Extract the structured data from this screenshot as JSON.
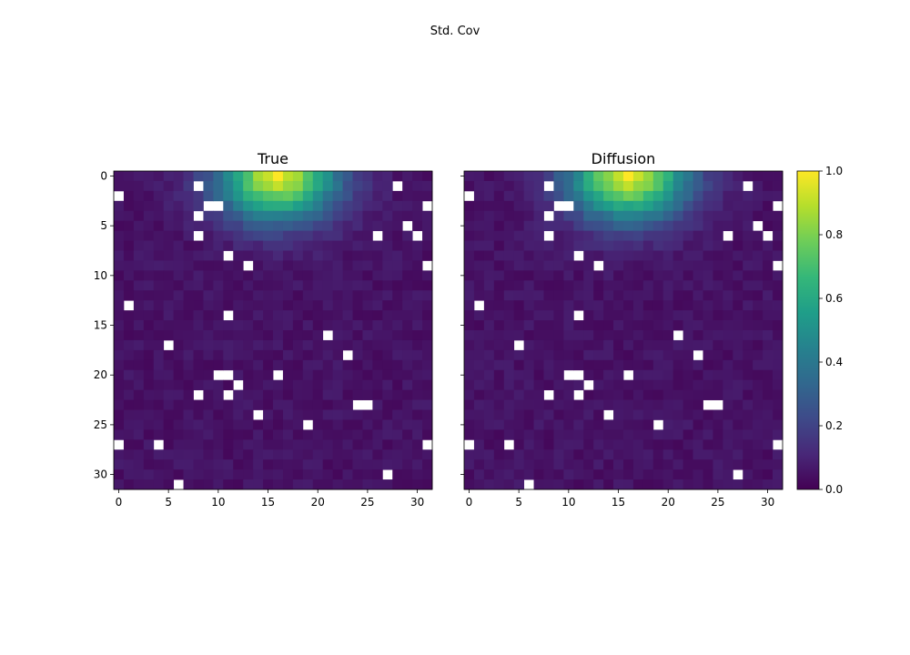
{
  "figure": {
    "suptitle": "Std. Cov"
  },
  "colorbar": {
    "min": 0.0,
    "max": 1.0,
    "ticks": [
      0.0,
      0.2,
      0.4,
      0.6,
      0.8,
      1.0
    ],
    "tick_labels": [
      "0.0",
      "0.2",
      "0.4",
      "0.6",
      "0.8",
      "1.0"
    ],
    "colormap": "viridis",
    "stops": [
      "#440154",
      "#482878",
      "#3e4a89",
      "#31688e",
      "#26828e",
      "#1f9e89",
      "#35b779",
      "#6dcd59",
      "#b4de2c",
      "#fde725"
    ]
  },
  "chart_data": [
    {
      "type": "heatmap",
      "title": "True",
      "grid_size": 32,
      "x_ticks": [
        0,
        5,
        10,
        15,
        20,
        25,
        30
      ],
      "y_ticks": [
        0,
        5,
        10,
        15,
        20,
        25,
        30
      ],
      "x_tick_labels": [
        "0",
        "5",
        "10",
        "15",
        "20",
        "25",
        "30"
      ],
      "y_tick_labels": [
        "0",
        "5",
        "10",
        "15",
        "20",
        "25",
        "30"
      ],
      "value_range": [
        0,
        1
      ],
      "peak": {
        "row": 0,
        "col": 16,
        "value": 1.0
      },
      "masked_cells": [
        [
          1,
          8
        ],
        [
          1,
          28
        ],
        [
          2,
          0
        ],
        [
          3,
          9
        ],
        [
          3,
          10
        ],
        [
          3,
          31
        ],
        [
          4,
          8
        ],
        [
          5,
          29
        ],
        [
          6,
          8
        ],
        [
          6,
          26
        ],
        [
          6,
          30
        ],
        [
          8,
          11
        ],
        [
          9,
          13
        ],
        [
          9,
          31
        ],
        [
          13,
          1
        ],
        [
          14,
          11
        ],
        [
          16,
          21
        ],
        [
          17,
          5
        ],
        [
          18,
          23
        ],
        [
          20,
          10
        ],
        [
          20,
          11
        ],
        [
          20,
          16
        ],
        [
          21,
          12
        ],
        [
          22,
          8
        ],
        [
          22,
          11
        ],
        [
          23,
          24
        ],
        [
          23,
          25
        ],
        [
          24,
          14
        ],
        [
          25,
          19
        ],
        [
          27,
          0
        ],
        [
          27,
          4
        ],
        [
          27,
          31
        ],
        [
          30,
          27
        ],
        [
          31,
          6
        ]
      ]
    },
    {
      "type": "heatmap",
      "title": "Diffusion",
      "grid_size": 32,
      "x_ticks": [
        0,
        5,
        10,
        15,
        20,
        25,
        30
      ],
      "x_tick_labels": [
        "0",
        "5",
        "10",
        "15",
        "20",
        "25",
        "30"
      ],
      "value_range": [
        0,
        1
      ],
      "peak": {
        "row": 0,
        "col": 16,
        "value": 1.0
      },
      "masked_cells": [
        [
          1,
          8
        ],
        [
          1,
          28
        ],
        [
          2,
          0
        ],
        [
          3,
          9
        ],
        [
          3,
          10
        ],
        [
          3,
          31
        ],
        [
          4,
          8
        ],
        [
          5,
          29
        ],
        [
          6,
          8
        ],
        [
          6,
          26
        ],
        [
          6,
          30
        ],
        [
          8,
          11
        ],
        [
          9,
          13
        ],
        [
          9,
          31
        ],
        [
          13,
          1
        ],
        [
          14,
          11
        ],
        [
          16,
          21
        ],
        [
          17,
          5
        ],
        [
          18,
          23
        ],
        [
          20,
          10
        ],
        [
          20,
          11
        ],
        [
          20,
          16
        ],
        [
          21,
          12
        ],
        [
          22,
          8
        ],
        [
          22,
          11
        ],
        [
          23,
          24
        ],
        [
          23,
          25
        ],
        [
          24,
          14
        ],
        [
          25,
          19
        ],
        [
          27,
          0
        ],
        [
          27,
          4
        ],
        [
          27,
          31
        ],
        [
          30,
          27
        ],
        [
          31,
          6
        ]
      ]
    }
  ]
}
